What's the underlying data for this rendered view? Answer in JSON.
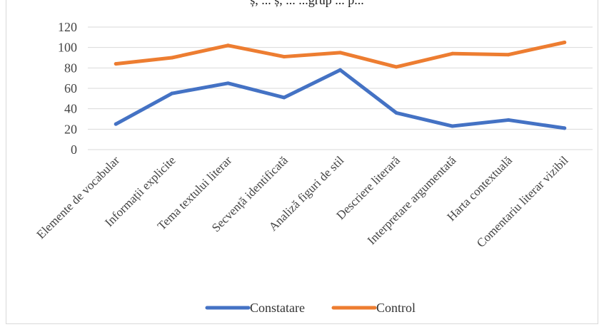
{
  "header_fragment": "ș, ... ș, ... ...grup ... p...",
  "chart_data": {
    "type": "line",
    "title": "",
    "xlabel": "",
    "ylabel": "",
    "ylim": [
      0,
      120
    ],
    "yticks": [
      0,
      20,
      40,
      60,
      80,
      100,
      120
    ],
    "grid": true,
    "legend_position": "bottom",
    "categories": [
      "Elemente de vocabular",
      "Informații explicite",
      "Tema textului literar",
      "Secvență identificată",
      "Analiză figuri de stil",
      "Descriere literară",
      "Interpretare argumentată",
      "Harta contextuală",
      "Comentariu literar vizibil"
    ],
    "series": [
      {
        "name": "Constatare",
        "color": "#4472c4",
        "values": [
          25,
          55,
          65,
          51,
          78,
          36,
          23,
          29,
          21
        ]
      },
      {
        "name": "Control",
        "color": "#ed7d31",
        "values": [
          84,
          90,
          102,
          91,
          95,
          81,
          94,
          93,
          105
        ]
      }
    ]
  }
}
